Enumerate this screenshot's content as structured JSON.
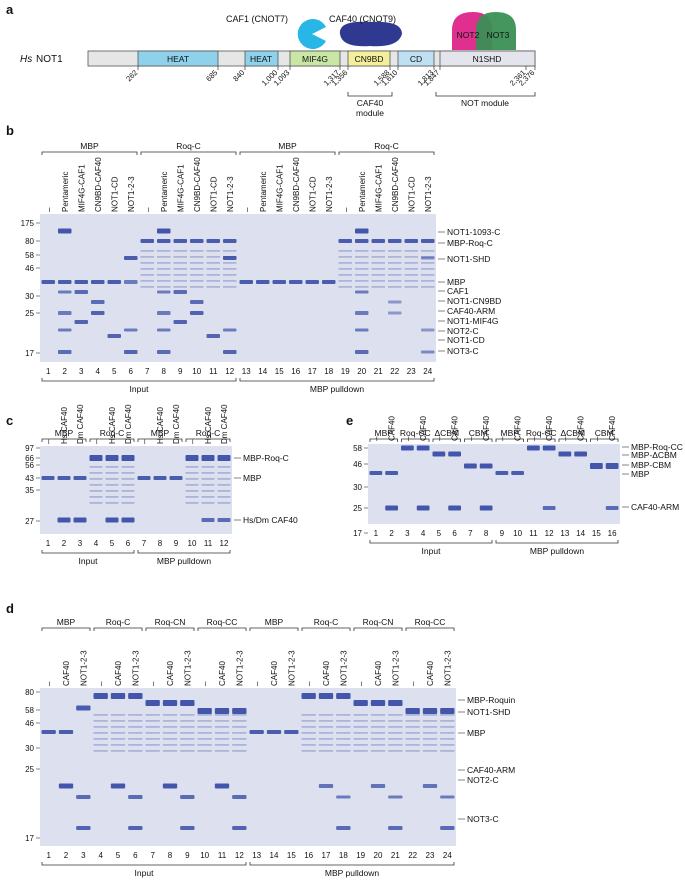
{
  "colors": {
    "gel_bg": "#dde1ef",
    "band": "#3a4ea6",
    "heat": "#8fd0ea",
    "mif4g": "#c9e6a5",
    "cn9bd": "#f4ef9c",
    "cd": "#bfe0f2",
    "n1shd": "#e4e4ec",
    "caf1": "#27b6e6",
    "caf40": "#2f3990",
    "not2": "#e0308f",
    "not3": "#3a8f55"
  },
  "panel_a": {
    "label": "a",
    "protein_label_italic": "Hs",
    "protein_label": "NOT1",
    "domains": [
      "HEAT",
      "HEAT",
      "MIF4G",
      "CN9BD",
      "CD",
      "N1SHD"
    ],
    "binders": {
      "caf1": "CAF1 (CNOT7)",
      "caf40": "CAF40 (CNOT9)",
      "not2": "NOT2",
      "not3": "NOT3"
    },
    "positions": [
      "262",
      "685",
      "840",
      "1,000",
      "1,093",
      "1,317",
      "1,356",
      "1,588",
      "1,610",
      "1,813",
      "1,847",
      "2,361",
      "2,376"
    ],
    "modules": [
      "CAF40\nmodule",
      "NOT module"
    ]
  },
  "panel_b": {
    "label": "b",
    "groups": [
      "MBP",
      "Roq-C",
      "MBP",
      "Roq-C"
    ],
    "lanes_top": [
      "–",
      "Pentameric",
      "MIF4G-CAF1",
      "CN9BD-CAF40",
      "NOT1-CD",
      "NOT1-2-3"
    ],
    "mw": [
      "175",
      "80",
      "58",
      "46",
      "30",
      "25",
      "17"
    ],
    "right_labels": [
      "NOT1-1093-C",
      "MBP-Roq-C",
      "NOT1-SHD",
      "MBP",
      "CAF1",
      "NOT1-CN9BD",
      "CAF40-ARM",
      "NOT1-MIF4G",
      "NOT2-C",
      "NOT1-CD",
      "NOT3-C"
    ],
    "lane_numbers": [
      "1",
      "2",
      "3",
      "4",
      "5",
      "6",
      "7",
      "8",
      "9",
      "10",
      "11",
      "12",
      "13",
      "14",
      "15",
      "16",
      "17",
      "18",
      "19",
      "20",
      "21",
      "22",
      "23",
      "24"
    ],
    "bottom": [
      "Input",
      "MBP pulldown"
    ]
  },
  "panel_c": {
    "label": "c",
    "groups": [
      "MBP",
      "Roq-C",
      "MBP",
      "Roq-C"
    ],
    "lanes_top": [
      "–",
      "Hs CAF40",
      "Dm CAF40"
    ],
    "mw": [
      "97",
      "66",
      "56",
      "43",
      "35",
      "27"
    ],
    "right_labels": [
      "MBP-Roq-C",
      "MBP",
      "Hs/Dm CAF40"
    ],
    "lane_numbers": [
      "1",
      "2",
      "3",
      "4",
      "5",
      "6",
      "7",
      "8",
      "9",
      "10",
      "11",
      "12"
    ],
    "bottom": [
      "Input",
      "MBP pulldown"
    ]
  },
  "panel_e": {
    "label": "e",
    "groups": [
      "MBP",
      "Roq-CC",
      "ΔCBM",
      "CBM",
      "MBP",
      "Roq-CC",
      "ΔCBM",
      "CBM"
    ],
    "lanes_top": [
      "–",
      "CAF40"
    ],
    "mw": [
      "58",
      "46",
      "30",
      "25",
      "17"
    ],
    "right_labels": [
      "MBP-Roq-CC",
      "MBP-ΔCBM",
      "MBP-CBM",
      "MBP",
      "CAF40-ARM"
    ],
    "lane_numbers": [
      "1",
      "2",
      "3",
      "4",
      "5",
      "6",
      "7",
      "8",
      "9",
      "10",
      "11",
      "12",
      "13",
      "14",
      "15",
      "16"
    ],
    "bottom": [
      "Input",
      "MBP pulldown"
    ]
  },
  "panel_d": {
    "label": "d",
    "groups": [
      "MBP",
      "Roq-C",
      "Roq-CN",
      "Roq-CC",
      "MBP",
      "Roq-C",
      "Roq-CN",
      "Roq-CC"
    ],
    "lanes_top": [
      "–",
      "CAF40",
      "NOT1-2-3"
    ],
    "mw": [
      "80",
      "58",
      "46",
      "30",
      "25",
      "17"
    ],
    "right_labels": [
      "MBP-Roquin",
      "NOT1-SHD",
      "MBP",
      "CAF40-ARM",
      "NOT2-C",
      "NOT3-C"
    ],
    "lane_numbers": [
      "1",
      "2",
      "3",
      "4",
      "5",
      "6",
      "7",
      "8",
      "9",
      "10",
      "11",
      "12",
      "13",
      "14",
      "15",
      "16",
      "17",
      "18",
      "19",
      "20",
      "21",
      "22",
      "23",
      "24"
    ],
    "bottom": [
      "Input",
      "MBP pulldown"
    ]
  }
}
